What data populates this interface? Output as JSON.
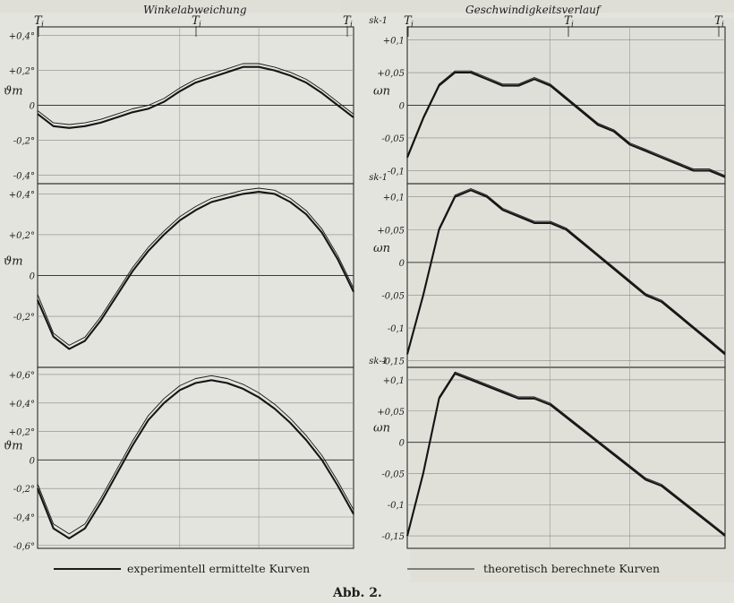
{
  "figure": {
    "left_title": "Winkelabweichung",
    "right_title": "Geschwindigkeitsverlauf",
    "caption": "Abb. 2.",
    "legend": {
      "experimental": "experimentell ermittelte Kurven",
      "theoretical": "theoretisch berechnete Kurven"
    },
    "marker_T": "T",
    "marker_sub": "i"
  },
  "chart_data": [
    {
      "type": "line",
      "panel": "left-1",
      "ylabel": "ϑm",
      "yticks": [
        "+0,4°",
        "+0,2°",
        "0",
        "-0,2°",
        "-0,4°"
      ],
      "ylim": [
        -0.45,
        0.45
      ],
      "xlim": [
        0,
        1
      ],
      "series": [
        {
          "name": "experimentell ermittelte Kurven",
          "x": [
            0,
            0.05,
            0.1,
            0.15,
            0.2,
            0.25,
            0.3,
            0.35,
            0.4,
            0.45,
            0.5,
            0.55,
            0.6,
            0.65,
            0.7,
            0.75,
            0.8,
            0.85,
            0.9,
            0.95,
            1.0
          ],
          "y": [
            -0.05,
            -0.12,
            -0.13,
            -0.12,
            -0.1,
            -0.07,
            -0.04,
            -0.02,
            0.02,
            0.08,
            0.13,
            0.16,
            0.19,
            0.22,
            0.22,
            0.2,
            0.17,
            0.13,
            0.07,
            0.0,
            -0.07
          ]
        },
        {
          "name": "theoretisch berechnete Kurven",
          "x": [
            0,
            0.05,
            0.1,
            0.15,
            0.2,
            0.25,
            0.3,
            0.35,
            0.4,
            0.45,
            0.5,
            0.55,
            0.6,
            0.65,
            0.7,
            0.75,
            0.8,
            0.85,
            0.9,
            0.95,
            1.0
          ],
          "y": [
            -0.04,
            -0.11,
            -0.12,
            -0.11,
            -0.09,
            -0.06,
            -0.03,
            -0.01,
            0.03,
            0.09,
            0.14,
            0.17,
            0.2,
            0.23,
            0.23,
            0.21,
            0.18,
            0.14,
            0.08,
            0.01,
            -0.06
          ]
        }
      ]
    },
    {
      "type": "line",
      "panel": "left-2",
      "ylabel": "ϑm",
      "yticks": [
        "+0,4°",
        "+0,2°",
        "0",
        "-0,2°"
      ],
      "ylim": [
        -0.45,
        0.45
      ],
      "xlim": [
        0,
        1
      ],
      "series": [
        {
          "name": "experimentell ermittelte Kurven",
          "x": [
            0,
            0.05,
            0.1,
            0.15,
            0.2,
            0.25,
            0.3,
            0.35,
            0.4,
            0.45,
            0.5,
            0.55,
            0.6,
            0.65,
            0.7,
            0.75,
            0.8,
            0.85,
            0.9,
            0.95,
            1.0
          ],
          "y": [
            -0.12,
            -0.3,
            -0.36,
            -0.32,
            -0.22,
            -0.1,
            0.02,
            0.12,
            0.2,
            0.27,
            0.32,
            0.36,
            0.38,
            0.4,
            0.41,
            0.4,
            0.36,
            0.3,
            0.21,
            0.08,
            -0.08
          ]
        },
        {
          "name": "theoretisch berechnete Kurven",
          "x": [
            0,
            0.05,
            0.1,
            0.15,
            0.2,
            0.25,
            0.3,
            0.35,
            0.4,
            0.45,
            0.5,
            0.55,
            0.6,
            0.65,
            0.7,
            0.75,
            0.8,
            0.85,
            0.9,
            0.95,
            1.0
          ],
          "y": [
            -0.1,
            -0.29,
            -0.35,
            -0.31,
            -0.21,
            -0.09,
            0.03,
            0.13,
            0.21,
            0.28,
            0.33,
            0.37,
            0.39,
            0.41,
            0.42,
            0.41,
            0.37,
            0.31,
            0.22,
            0.09,
            -0.07
          ]
        }
      ]
    },
    {
      "type": "line",
      "panel": "left-3",
      "ylabel": "ϑm",
      "yticks": [
        "+0,6°",
        "+0,4°",
        "+0,2°",
        "0",
        "-0,2°",
        "-0,4°",
        "-0,6°"
      ],
      "ylim": [
        -0.62,
        0.65
      ],
      "xlim": [
        0,
        1
      ],
      "series": [
        {
          "name": "experimentell ermittelte Kurven",
          "x": [
            0,
            0.05,
            0.1,
            0.15,
            0.2,
            0.25,
            0.3,
            0.35,
            0.4,
            0.45,
            0.5,
            0.55,
            0.6,
            0.65,
            0.7,
            0.75,
            0.8,
            0.85,
            0.9,
            0.95,
            1.0
          ],
          "y": [
            -0.2,
            -0.48,
            -0.55,
            -0.48,
            -0.3,
            -0.1,
            0.1,
            0.28,
            0.4,
            0.49,
            0.54,
            0.56,
            0.54,
            0.5,
            0.44,
            0.36,
            0.26,
            0.14,
            0.0,
            -0.18,
            -0.38
          ]
        },
        {
          "name": "theoretisch berechnete Kurven",
          "x": [
            0,
            0.05,
            0.1,
            0.15,
            0.2,
            0.25,
            0.3,
            0.35,
            0.4,
            0.45,
            0.5,
            0.55,
            0.6,
            0.65,
            0.7,
            0.75,
            0.8,
            0.85,
            0.9,
            0.95,
            1.0
          ],
          "y": [
            -0.18,
            -0.46,
            -0.53,
            -0.46,
            -0.28,
            -0.08,
            0.12,
            0.3,
            0.42,
            0.51,
            0.56,
            0.58,
            0.56,
            0.52,
            0.46,
            0.38,
            0.28,
            0.16,
            0.02,
            -0.16,
            -0.36
          ]
        }
      ]
    },
    {
      "type": "line",
      "panel": "right-1",
      "ylabel": "ωn",
      "yunit": "sk-1",
      "yticks": [
        "+0,1",
        "+0,05",
        "0",
        "-0,05",
        "-0,1"
      ],
      "ylim": [
        -0.12,
        0.12
      ],
      "xlim": [
        0,
        1
      ],
      "series": [
        {
          "name": "experimentell ermittelte Kurven",
          "x": [
            0,
            0.05,
            0.1,
            0.15,
            0.2,
            0.25,
            0.3,
            0.35,
            0.4,
            0.45,
            0.5,
            0.55,
            0.6,
            0.65,
            0.7,
            0.75,
            0.8,
            0.85,
            0.9,
            0.95,
            1.0
          ],
          "y": [
            -0.08,
            -0.02,
            0.03,
            0.05,
            0.05,
            0.04,
            0.03,
            0.03,
            0.04,
            0.03,
            0.01,
            -0.01,
            -0.03,
            -0.04,
            -0.06,
            -0.07,
            -0.08,
            -0.09,
            -0.1,
            -0.1,
            -0.11
          ]
        },
        {
          "name": "theoretisch berechnete Kurven",
          "x": [
            0,
            0.05,
            0.1,
            0.15,
            0.2,
            0.25,
            0.3,
            0.35,
            0.4,
            0.45,
            0.5,
            0.55,
            0.6,
            0.65,
            0.7,
            0.75,
            0.8,
            0.85,
            0.9,
            0.95,
            1.0
          ],
          "y": [
            -0.08,
            -0.02,
            0.03,
            0.05,
            0.05,
            0.04,
            0.03,
            0.03,
            0.04,
            0.03,
            0.01,
            -0.01,
            -0.03,
            -0.04,
            -0.06,
            -0.07,
            -0.08,
            -0.09,
            -0.1,
            -0.1,
            -0.11
          ]
        }
      ]
    },
    {
      "type": "line",
      "panel": "right-2",
      "ylabel": "ωn",
      "yunit": "sk-1",
      "yticks": [
        "+0,1",
        "+0,05",
        "0",
        "-0,05",
        "-0,1",
        "-0,15"
      ],
      "ylim": [
        -0.16,
        0.12
      ],
      "xlim": [
        0,
        1
      ],
      "series": [
        {
          "name": "experimentell ermittelte Kurven",
          "x": [
            0,
            0.05,
            0.1,
            0.15,
            0.2,
            0.25,
            0.3,
            0.35,
            0.4,
            0.45,
            0.5,
            0.55,
            0.6,
            0.65,
            0.7,
            0.75,
            0.8,
            0.85,
            0.9,
            0.95,
            1.0
          ],
          "y": [
            -0.14,
            -0.05,
            0.05,
            0.1,
            0.11,
            0.1,
            0.08,
            0.07,
            0.06,
            0.06,
            0.05,
            0.03,
            0.01,
            -0.01,
            -0.03,
            -0.05,
            -0.06,
            -0.08,
            -0.1,
            -0.12,
            -0.14
          ]
        },
        {
          "name": "theoretisch berechnete Kurven",
          "x": [
            0,
            0.05,
            0.1,
            0.15,
            0.2,
            0.25,
            0.3,
            0.35,
            0.4,
            0.45,
            0.5,
            0.55,
            0.6,
            0.65,
            0.7,
            0.75,
            0.8,
            0.85,
            0.9,
            0.95,
            1.0
          ],
          "y": [
            -0.14,
            -0.05,
            0.05,
            0.1,
            0.11,
            0.1,
            0.08,
            0.07,
            0.06,
            0.06,
            0.05,
            0.03,
            0.01,
            -0.01,
            -0.03,
            -0.05,
            -0.06,
            -0.08,
            -0.1,
            -0.12,
            -0.14
          ]
        }
      ]
    },
    {
      "type": "line",
      "panel": "right-3",
      "ylabel": "ωn",
      "yunit": "sk-1",
      "yticks": [
        "+0,1",
        "+0,05",
        "0",
        "-0,05",
        "-0,1",
        "-0,15"
      ],
      "ylim": [
        -0.17,
        0.12
      ],
      "xlim": [
        0,
        1
      ],
      "series": [
        {
          "name": "experimentell ermittelte Kurven",
          "x": [
            0,
            0.05,
            0.1,
            0.15,
            0.2,
            0.25,
            0.3,
            0.35,
            0.4,
            0.45,
            0.5,
            0.55,
            0.6,
            0.65,
            0.7,
            0.75,
            0.8,
            0.85,
            0.9,
            0.95,
            1.0
          ],
          "y": [
            -0.15,
            -0.05,
            0.07,
            0.11,
            0.1,
            0.09,
            0.08,
            0.07,
            0.07,
            0.06,
            0.04,
            0.02,
            0.0,
            -0.02,
            -0.04,
            -0.06,
            -0.07,
            -0.09,
            -0.11,
            -0.13,
            -0.15
          ]
        },
        {
          "name": "theoretisch berechnete Kurven",
          "x": [
            0,
            0.05,
            0.1,
            0.15,
            0.2,
            0.25,
            0.3,
            0.35,
            0.4,
            0.45,
            0.5,
            0.55,
            0.6,
            0.65,
            0.7,
            0.75,
            0.8,
            0.85,
            0.9,
            0.95,
            1.0
          ],
          "y": [
            -0.15,
            -0.05,
            0.07,
            0.11,
            0.1,
            0.09,
            0.08,
            0.07,
            0.07,
            0.06,
            0.04,
            0.02,
            0.0,
            -0.02,
            -0.04,
            -0.06,
            -0.07,
            -0.09,
            -0.11,
            -0.13,
            -0.15
          ]
        }
      ]
    }
  ]
}
